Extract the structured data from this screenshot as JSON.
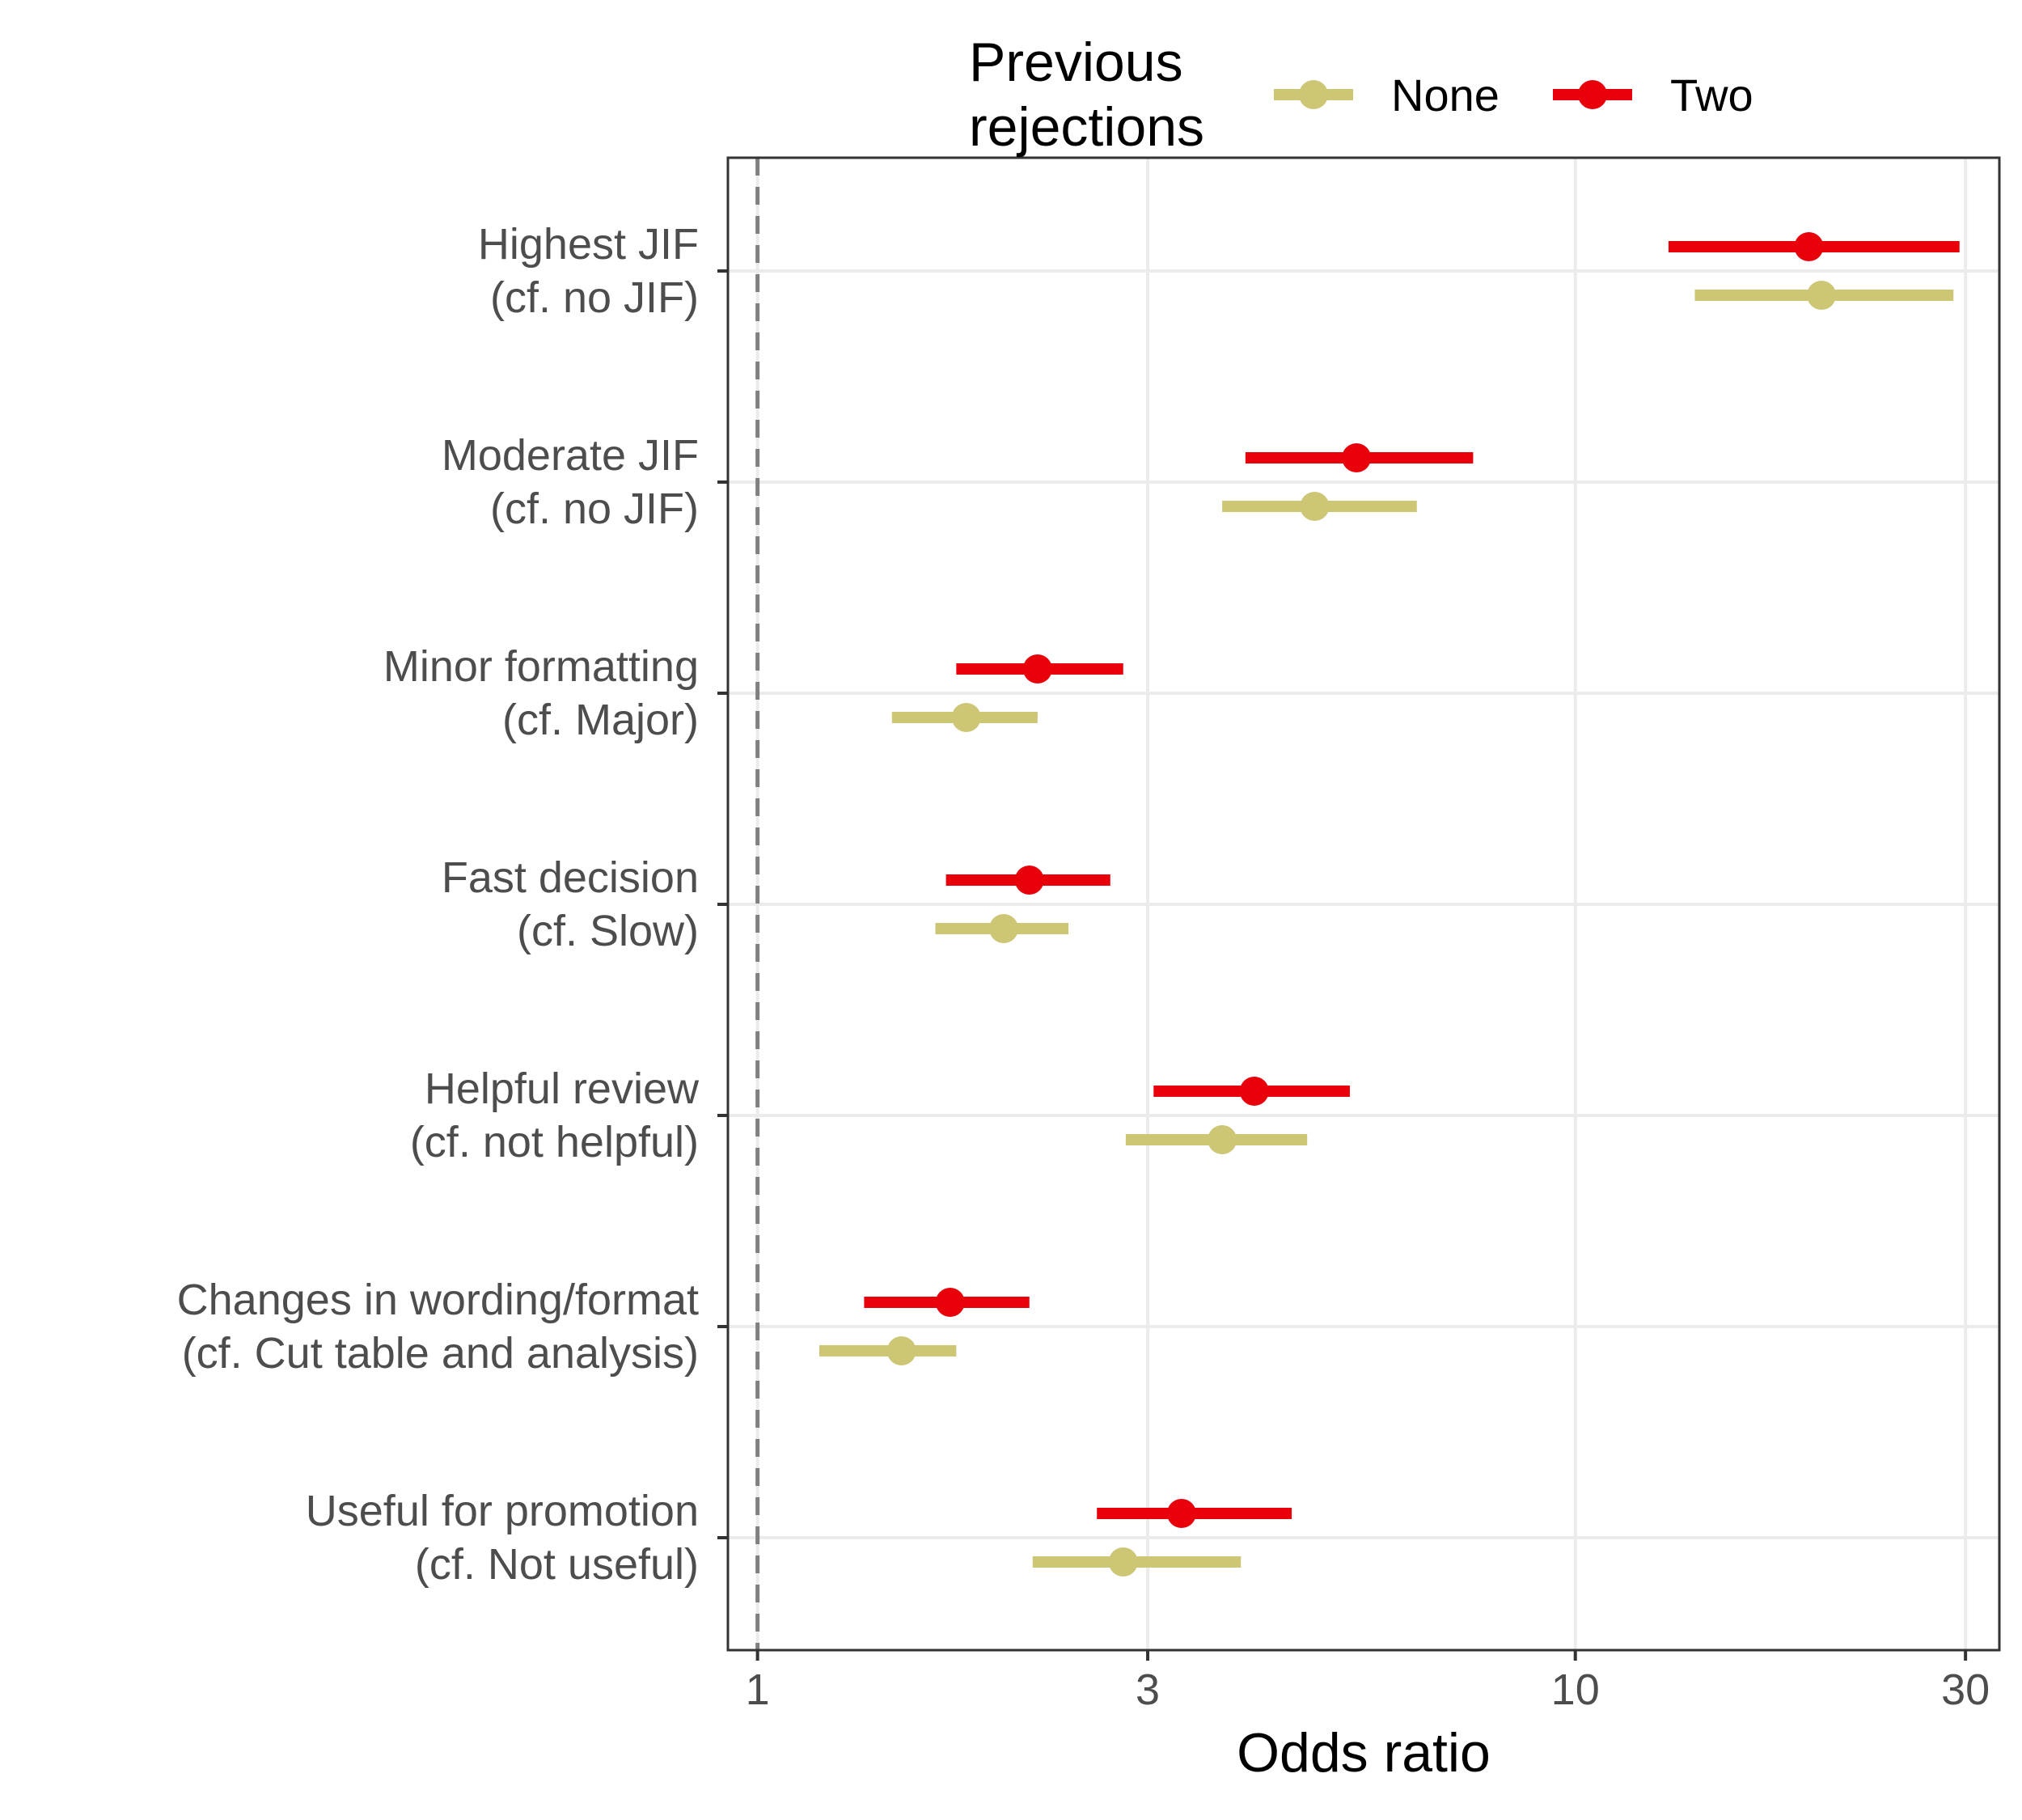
{
  "chart_data": {
    "type": "scatter",
    "subtype": "forest-plot",
    "xlabel": "Odds ratio",
    "ylabel": "",
    "x_scale": "log",
    "xlim": [
      0.92,
      33
    ],
    "x_ticks": [
      1,
      3,
      10,
      30
    ],
    "x_tick_labels": [
      "1",
      "3",
      "10",
      "30"
    ],
    "reference_line": 1,
    "grid": true,
    "legend": {
      "title": [
        "Previous",
        "rejections"
      ],
      "position": "top",
      "entries": [
        "None",
        "Two"
      ]
    },
    "colors": {
      "None": "#ccc675",
      "Two": "#e8000b",
      "reference": "#808080"
    },
    "categories": [
      [
        "Highest JIF",
        "(cf. no JIF)"
      ],
      [
        "Moderate JIF",
        "(cf. no JIF)"
      ],
      [
        "Minor formatting",
        "(cf. Major)"
      ],
      [
        "Fast decision",
        "(cf. Slow)"
      ],
      [
        "Helpful review",
        "(cf. not helpful)"
      ],
      [
        "Changes in wording/format",
        "(cf. Cut table and analysis)"
      ],
      [
        "Useful for promotion",
        "(cf. Not useful)"
      ]
    ],
    "series": [
      {
        "name": "None",
        "estimate": [
          20.0,
          4.8,
          1.8,
          2.0,
          3.7,
          1.5,
          2.8
        ],
        "lower": [
          14.0,
          3.7,
          1.46,
          1.65,
          2.82,
          1.19,
          2.17
        ],
        "upper": [
          29.0,
          6.4,
          2.2,
          2.4,
          4.7,
          1.75,
          3.9
        ]
      },
      {
        "name": "Two",
        "estimate": [
          19.3,
          5.4,
          2.2,
          2.15,
          4.05,
          1.72,
          3.3
        ],
        "lower": [
          13.0,
          3.95,
          1.75,
          1.7,
          3.05,
          1.35,
          2.6
        ],
        "upper": [
          29.5,
          7.5,
          2.8,
          2.7,
          5.3,
          2.15,
          4.5
        ]
      }
    ]
  }
}
